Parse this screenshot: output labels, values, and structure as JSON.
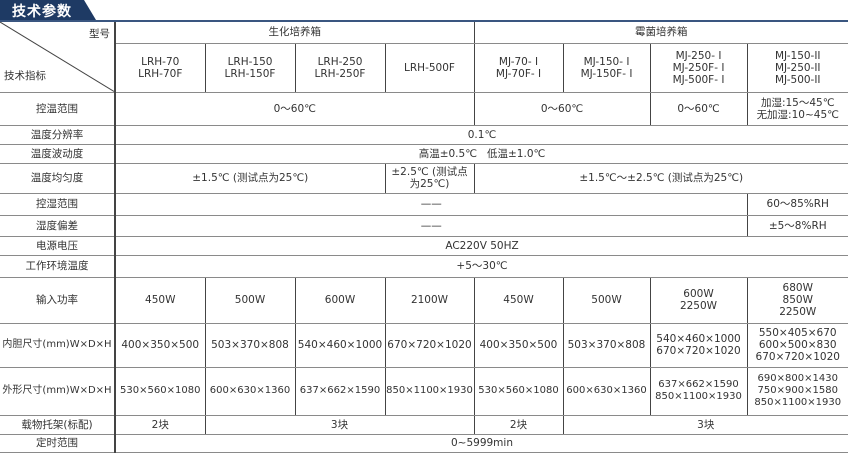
{
  "title": "技术参数",
  "header": {
    "model_label": "型号",
    "spec_label": "技术指标",
    "groups": [
      "生化培养箱",
      "霉菌培养箱"
    ],
    "models": [
      "LRH-70\nLRH-70F",
      "LRH-150\nLRH-150F",
      "LRH-250\nLRH-250F",
      "LRH-500F",
      "MJ-70- I\nMJ-70F- I",
      "MJ-150- I\nMJ-150F- I",
      "MJ-250- I\nMJ-250F- I\nMJ-500F- I",
      "MJ-150-II\nMJ-250-II\nMJ-500-II"
    ]
  },
  "rows": {
    "temp_range": {
      "label": "控温范围",
      "values": [
        "0～60℃",
        "0～60℃",
        "0～60℃",
        "加湿:15～45℃\n无加湿:10~45℃"
      ]
    },
    "temp_resolution": {
      "label": "温度分辨率",
      "value": "0.1℃"
    },
    "temp_fluctuation": {
      "label": "温度波动度",
      "value": "高温±0.5℃   低温±1.0℃"
    },
    "temp_uniformity": {
      "label": "温度均匀度",
      "values": [
        "±1.5℃ (测试点为25℃)",
        "±2.5℃ (测试点\n为25℃)",
        "±1.5℃～±2.5℃ (测试点为25℃)"
      ]
    },
    "humidity_range": {
      "label": "控湿范围",
      "values": [
        "——",
        "60～85%RH"
      ]
    },
    "humidity_deviation": {
      "label": "湿度偏差",
      "values": [
        "——",
        "±5～8%RH"
      ]
    },
    "power_supply": {
      "label": "电源电压",
      "value": "AC220V 50HZ"
    },
    "ambient_temp": {
      "label": "工作环境温度",
      "value": "+5～30℃"
    },
    "input_power": {
      "label": "输入功率",
      "values": [
        "450W",
        "500W",
        "600W",
        "2100W",
        "450W",
        "500W",
        "600W\n2250W",
        "680W\n850W\n2250W"
      ]
    },
    "inner_size": {
      "label": "内胆尺寸(mm)W×D×H",
      "values": [
        "400×350×500",
        "503×370×808",
        "540×460×1000",
        "670×720×1020",
        "400×350×500",
        "503×370×808",
        "540×460×1000\n670×720×1020",
        "550×405×670\n600×500×830\n670×720×1020"
      ]
    },
    "outer_size": {
      "label": "外形尺寸(mm)W×D×H",
      "values": [
        "530×560×1080",
        "600×630×1360",
        "637×662×1590",
        "850×1100×1930",
        "530×560×1080",
        "600×630×1360",
        "637×662×1590\n850×1100×1930",
        "690×800×1430\n750×900×1580\n850×1100×1930"
      ]
    },
    "shelves": {
      "label": "载物托架(标配)",
      "values": [
        "2块",
        "3块",
        "2块",
        "3块"
      ]
    },
    "timer": {
      "label": "定时范围",
      "value": "0~5999min"
    }
  },
  "colors": {
    "title_bg": "#1e3a64",
    "title_text": "#ffffff"
  }
}
